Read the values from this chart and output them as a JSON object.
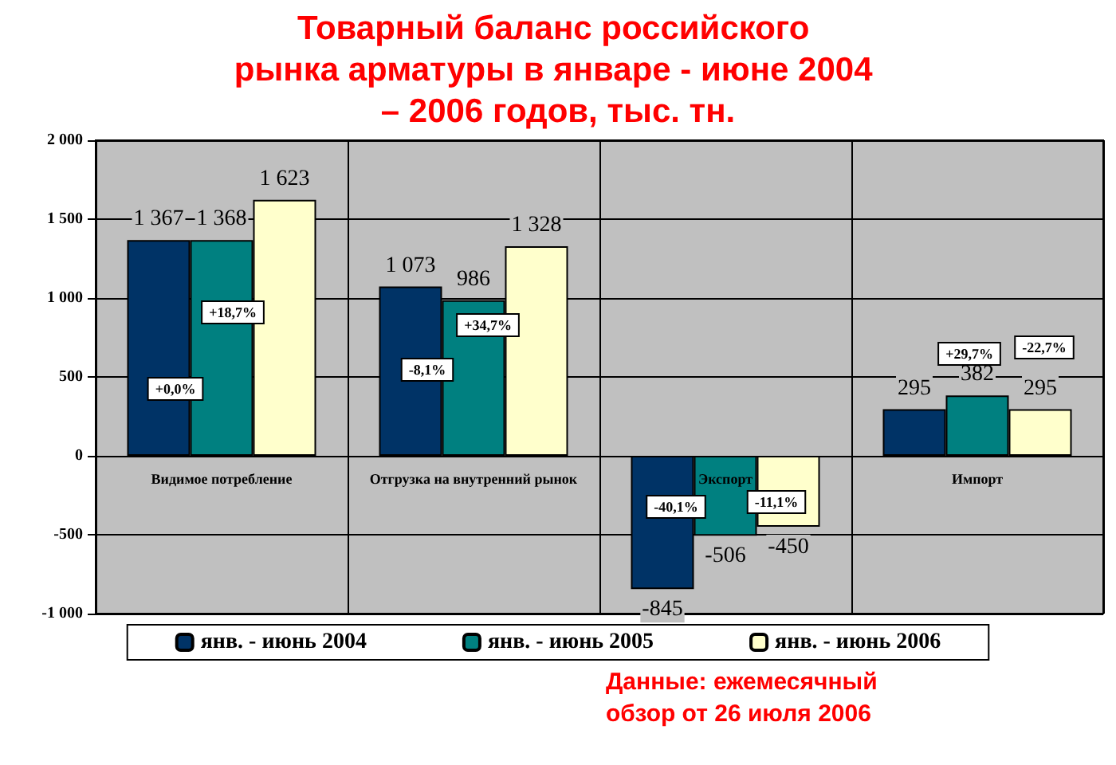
{
  "chart_data": {
    "type": "bar",
    "title": "Товарный баланс российского рынка арматуры в январе - июне 2004 – 2006 годов, тыс. тн.",
    "categories": [
      "Видимое потребление",
      "Отгрузка на внутренний рынок",
      "Экспорт",
      "Импорт"
    ],
    "series": [
      {
        "name": "янв. - июнь 2004",
        "color": "#003366",
        "values": [
          1367,
          1073,
          -845,
          295
        ]
      },
      {
        "name": "янв. - июнь 2005",
        "color": "#008080",
        "values": [
          1368,
          986,
          -506,
          382
        ]
      },
      {
        "name": "янв. - июнь 2006",
        "color": "#ffffcc",
        "values": [
          1623,
          1328,
          -450,
          295
        ]
      }
    ],
    "ylim": [
      -1000,
      2000
    ],
    "yticks": [
      {
        "value": -1000,
        "label": "-1 000"
      },
      -500,
      0,
      500,
      {
        "value": 1000,
        "label": "1 000"
      },
      {
        "value": 1500,
        "label": "1 500"
      },
      {
        "value": 2000,
        "label": "2 000"
      }
    ],
    "grid": true,
    "legend": "bottom",
    "data_labels": true,
    "annotations": [
      "+0,0%",
      "+18,7%",
      "-8,1%",
      "+34,7%",
      "-40,1%",
      "-11,1%",
      "+29,7%",
      "-22,7%",
      "Данные: ежемесячный обзор от 26 июля 2006"
    ]
  }
}
